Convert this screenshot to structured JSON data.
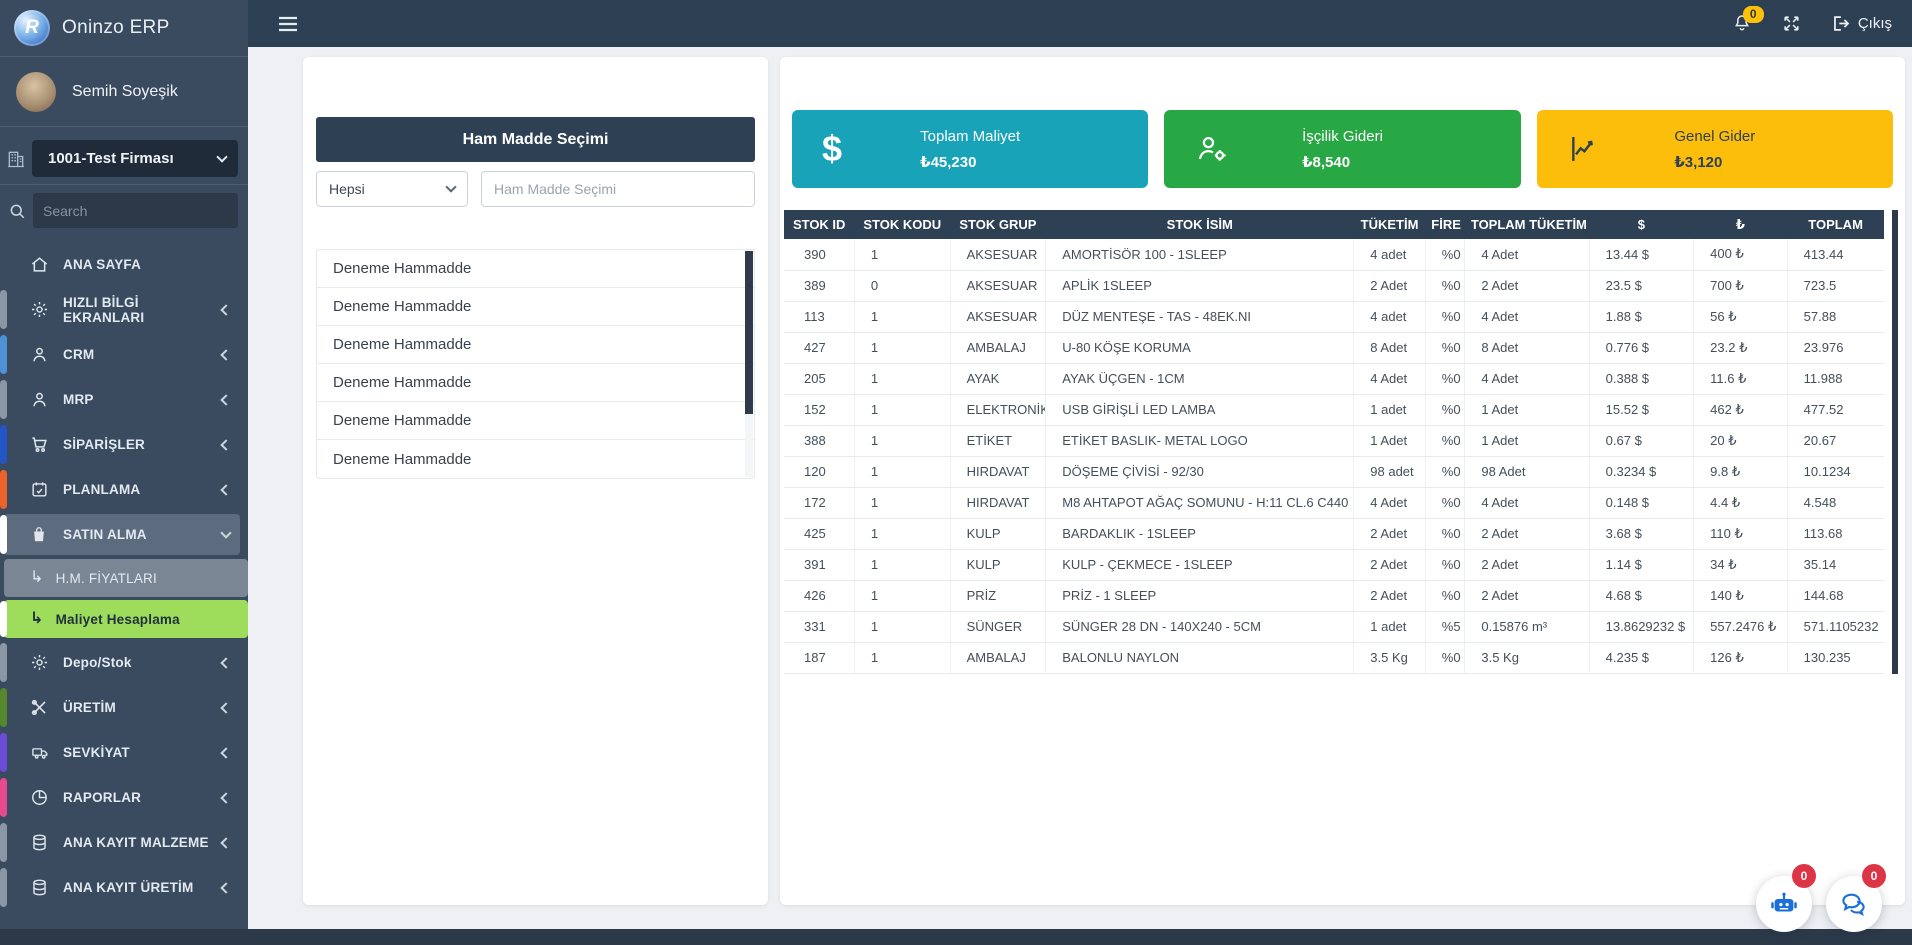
{
  "brand": {
    "name": "Oninzo ERP",
    "logo_letter": "R"
  },
  "user": {
    "name": "Semih Soyeşik"
  },
  "company": {
    "selected": "1001-Test Firması"
  },
  "sidebar_search": {
    "placeholder": "Search"
  },
  "navbar": {
    "notifications_badge": "0",
    "logout_label": "Çıkış"
  },
  "icons": {
    "submenu_arrow": "↳"
  },
  "sidebar": {
    "items": [
      {
        "label": "ANA SAYFA",
        "icon": "home",
        "accent": "",
        "chevron": ""
      },
      {
        "label": "HIZLI BİLGİ EKRANLARI",
        "icon": "gear",
        "accent": "#8b97a5",
        "chevron": "left"
      },
      {
        "label": "CRM",
        "icon": "person",
        "accent": "#4e92d6",
        "chevron": "left"
      },
      {
        "label": "MRP",
        "icon": "person",
        "accent": "#8b97a5",
        "chevron": "left"
      },
      {
        "label": "SİPARİŞLER",
        "icon": "cart",
        "accent": "#2256c7",
        "chevron": "left"
      },
      {
        "label": "PLANLAMA",
        "icon": "calendar",
        "accent": "#e9632b",
        "chevron": "left"
      },
      {
        "label": "SATIN ALMA",
        "icon": "bag",
        "accent": "#ffffff",
        "chevron": "down",
        "state": "open"
      },
      {
        "label": "H.M. FİYATLARI",
        "icon": "subarrow",
        "accent": "",
        "chevron": "",
        "state": "sub"
      },
      {
        "label": "Maliyet Hesaplama",
        "icon": "subarrow",
        "accent": "#ffffff",
        "chevron": "",
        "state": "sub-active"
      },
      {
        "label": "Depo/Stok",
        "icon": "gear",
        "accent": "#8b97a5",
        "chevron": "left"
      },
      {
        "label": "ÜRETİM",
        "icon": "tools",
        "accent": "#55872c",
        "chevron": "left"
      },
      {
        "label": "SEVKİYAT",
        "icon": "truck",
        "accent": "#6e4bd8",
        "chevron": "left"
      },
      {
        "label": "RAPORLAR",
        "icon": "pie",
        "accent": "#e84a8f",
        "chevron": "left"
      },
      {
        "label": "ANA KAYIT MALZEME",
        "icon": "db",
        "accent": "#8b97a5",
        "chevron": "left"
      },
      {
        "label": "ANA KAYIT ÜRETİM",
        "icon": "db",
        "accent": "#8b97a5",
        "chevron": "left"
      }
    ]
  },
  "selection_panel": {
    "title": "Ham Madde Seçimi",
    "filter_value": "Hepsi",
    "search_placeholder": "Ham Madde Seçimi",
    "items": [
      "Deneme Hammadde",
      "Deneme Hammadde",
      "Deneme Hammadde",
      "Deneme Hammadde",
      "Deneme Hammadde",
      "Deneme Hammadde"
    ]
  },
  "stats": [
    {
      "label": "Toplam Maliyet",
      "value": "₺45,230",
      "bg": "#18a3b8",
      "icon": "dollar",
      "dark_text": false
    },
    {
      "label": "İşçilik Gideri",
      "value": "₺8,540",
      "bg": "#28a745",
      "icon": "user-gear",
      "dark_text": false
    },
    {
      "label": "Genel Gider",
      "value": "₺3,120",
      "bg": "#fcbe0b",
      "icon": "chart-line",
      "dark_text": true
    }
  ],
  "table": {
    "columns": [
      "STOK ID",
      "STOK KODU",
      "STOK GRUP",
      "STOK İSİM",
      "TÜKETİM",
      "FİRE",
      "TOPLAM TÜKETİM",
      "$",
      "₺",
      "TOPLAM"
    ],
    "rows": [
      [
        "390",
        "1",
        "AKSESUAR",
        "AMORTİSÖR 100 - 1SLEEP",
        "4 adet",
        "%0",
        "4 Adet",
        "13.44 $",
        "400 ₺",
        "413.44"
      ],
      [
        "389",
        "0",
        "AKSESUAR",
        "APLİK 1SLEEP",
        "2 Adet",
        "%0",
        "2 Adet",
        "23.5 $",
        "700 ₺",
        "723.5"
      ],
      [
        "113",
        "1",
        "AKSESUAR",
        "DÜZ MENTEŞE - TAS - 48EK.NI",
        "4 adet",
        "%0",
        "4 Adet",
        "1.88 $",
        "56 ₺",
        "57.88"
      ],
      [
        "427",
        "1",
        "AMBALAJ",
        "U-80 KÖŞE KORUMA",
        "8 Adet",
        "%0",
        "8 Adet",
        "0.776 $",
        "23.2 ₺",
        "23.976"
      ],
      [
        "205",
        "1",
        "AYAK",
        "AYAK ÜÇGEN - 1CM",
        "4 Adet",
        "%0",
        "4 Adet",
        "0.388 $",
        "11.6 ₺",
        "11.988"
      ],
      [
        "152",
        "1",
        "ELEKTRONİK",
        "USB GİRİŞLİ LED LAMBA",
        "1 adet",
        "%0",
        "1 Adet",
        "15.52 $",
        "462 ₺",
        "477.52"
      ],
      [
        "388",
        "1",
        "ETİKET",
        "ETİKET BASLIK- METAL LOGO",
        "1 Adet",
        "%0",
        "1 Adet",
        "0.67 $",
        "20 ₺",
        "20.67"
      ],
      [
        "120",
        "1",
        "HIRDAVAT",
        "DÖŞEME ÇİVİSİ - 92/30",
        "98 adet",
        "%0",
        "98 Adet",
        "0.3234 $",
        "9.8 ₺",
        "10.1234"
      ],
      [
        "172",
        "1",
        "HIRDAVAT",
        "M8 AHTAPOT AĞAÇ SOMUNU - H:11 CL.6 C440",
        "4 Adet",
        "%0",
        "4 Adet",
        "0.148 $",
        "4.4 ₺",
        "4.548"
      ],
      [
        "425",
        "1",
        "KULP",
        "BARDAKLIK - 1SLEEP",
        "2 Adet",
        "%0",
        "2 Adet",
        "3.68 $",
        "110 ₺",
        "113.68"
      ],
      [
        "391",
        "1",
        "KULP",
        "KULP - ÇEKMECE - 1SLEEP",
        "2 Adet",
        "%0",
        "2 Adet",
        "1.14 $",
        "34 ₺",
        "35.14"
      ],
      [
        "426",
        "1",
        "PRİZ",
        "PRİZ - 1 SLEEP",
        "2 Adet",
        "%0",
        "2 Adet",
        "4.68 $",
        "140 ₺",
        "144.68"
      ],
      [
        "331",
        "1",
        "SÜNGER",
        "SÜNGER 28 DN - 140X240 - 5CM",
        "1 adet",
        "%5",
        "0.15876 m³",
        "13.8629232 $",
        "557.2476 ₺",
        "571.1105232"
      ],
      [
        "187",
        "1",
        "AMBALAJ",
        "BALONLU NAYLON",
        "3.5 Kg",
        "%0",
        "3.5 Kg",
        "4.235 $",
        "126 ₺",
        "130.235"
      ]
    ]
  },
  "fabs": [
    {
      "icon": "robot",
      "badge": "0"
    },
    {
      "icon": "chat",
      "badge": "0"
    }
  ]
}
